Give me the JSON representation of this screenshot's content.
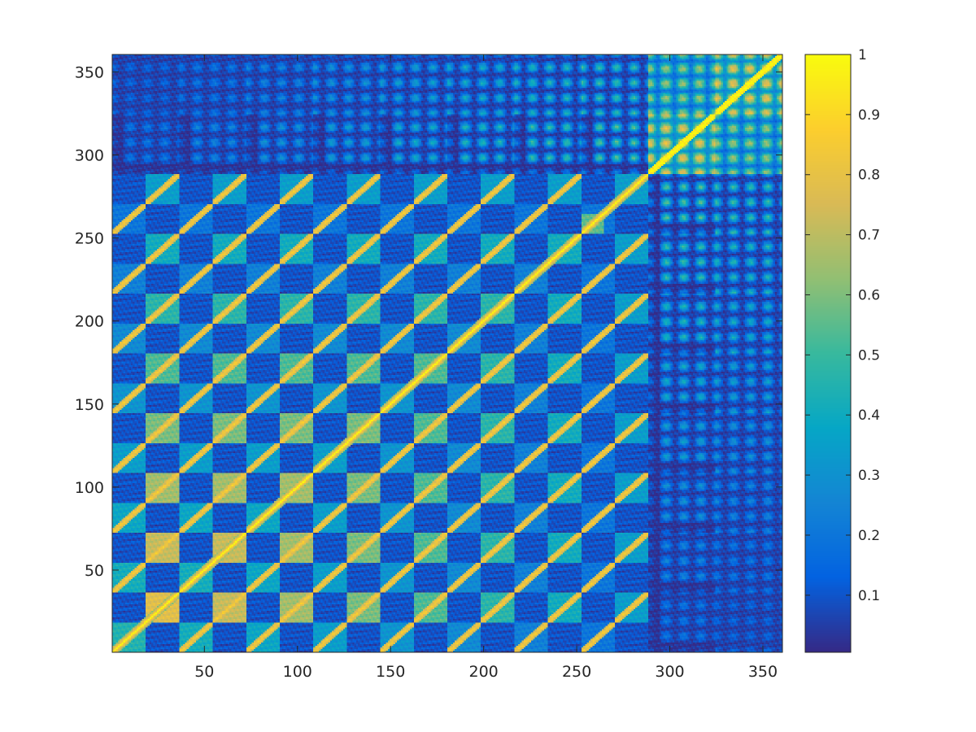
{
  "chart_data": {
    "type": "heatmap",
    "title": "",
    "xlabel": "",
    "ylabel": "",
    "matrix_size": 360,
    "xlim": [
      0.5,
      360.5
    ],
    "ylim": [
      0.5,
      360.5
    ],
    "y_direction": "normal",
    "x_ticks": [
      50,
      100,
      150,
      200,
      250,
      300,
      350
    ],
    "y_ticks": [
      50,
      100,
      150,
      200,
      250,
      300,
      350
    ],
    "x_tick_labels": [
      "50",
      "100",
      "150",
      "200",
      "250",
      "300",
      "350"
    ],
    "y_tick_labels": [
      "50",
      "100",
      "150",
      "200",
      "250",
      "300",
      "350"
    ],
    "block_boundaries": [
      36,
      72,
      108,
      144,
      180,
      216,
      252,
      288,
      324
    ],
    "diagonal_value": 1,
    "colormap": "parula",
    "colormap_stops": [
      "#352a87",
      "#0363e1",
      "#1485d4",
      "#06a7c6",
      "#38b99e",
      "#92bf73",
      "#d9ba56",
      "#fcce2e",
      "#f9fb0e"
    ],
    "colorbar": {
      "range": [
        0.005,
        1
      ],
      "ticks": [
        0.1,
        0.2,
        0.3,
        0.4,
        0.5,
        0.6,
        0.7,
        0.8,
        0.9,
        1
      ],
      "tick_labels": [
        "0.1",
        "0.2",
        "0.3",
        "0.4",
        "0.5",
        "0.6",
        "0.7",
        "0.8",
        "0.9",
        "1"
      ],
      "location": "right"
    },
    "grid": false
  }
}
